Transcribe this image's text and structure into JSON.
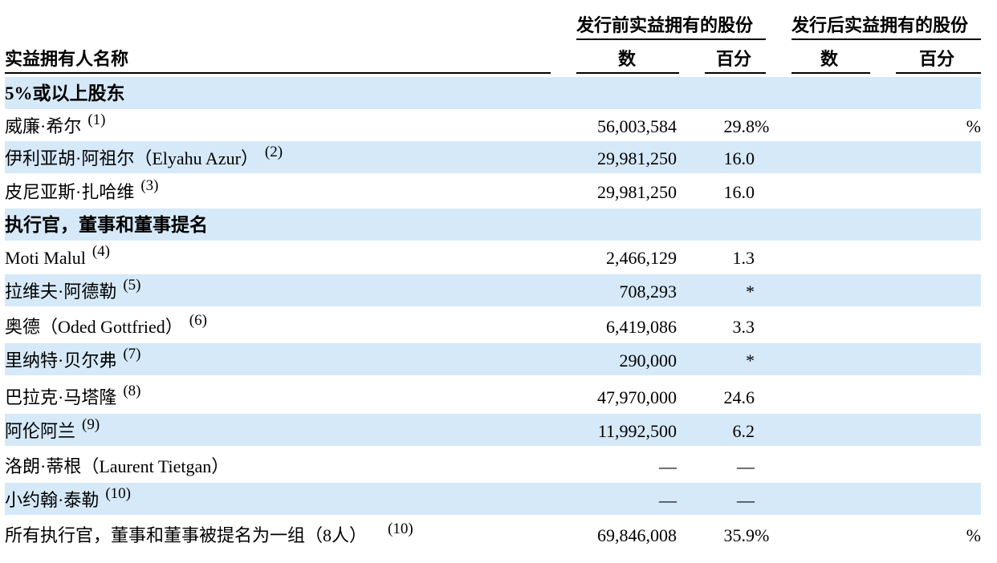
{
  "header": {
    "pre_group": "发行前实益拥有的股份",
    "post_group": "发行后实益拥有的股份",
    "name_col": "实益拥有人名称",
    "shares_col": "数",
    "percent_col": "百分",
    "post_shares_col": "数",
    "post_percent_col": "百分"
  },
  "rows": [
    {
      "name": "5%或以上股东",
      "section": true
    },
    {
      "name": "威廉·希尔",
      "fn": "(1)",
      "shares": "56,003,584",
      "pct": "29.8",
      "pct_sign": "%",
      "post_pct_sign": "%"
    },
    {
      "name": "伊利亚胡·阿祖尔（Elyahu Azur）",
      "fn": "(2)",
      "shares": "29,981,250",
      "pct": "16.0"
    },
    {
      "name": "皮尼亚斯·扎哈维",
      "fn": "(3)",
      "shares": "29,981,250",
      "pct": "16.0"
    },
    {
      "name": "执行官，董事和董事提名",
      "section": true
    },
    {
      "name": "Moti Malul",
      "fn": "(4)",
      "shares": "2,466,129",
      "pct": "1.3"
    },
    {
      "name": "拉维夫·阿德勒",
      "fn": "(5)",
      "shares": "708,293",
      "pct": "*"
    },
    {
      "name": "奥德（Oded Gottfried）",
      "fn": "(6)",
      "shares": "6,419,086",
      "pct": "3.3"
    },
    {
      "name": "里纳特·贝尔弗",
      "fn": "(7)",
      "shares": "290,000",
      "pct": "*"
    },
    {
      "name": "巴拉克·马塔隆",
      "fn": "(8)",
      "shares": "47,970,000",
      "pct": "24.6"
    },
    {
      "name": "阿伦阿兰",
      "fn": "(9)",
      "shares": "11,992,500",
      "pct": "6.2"
    },
    {
      "name": "洛朗·蒂根（Laurent Tietgan）",
      "shares": "—",
      "pct": "—"
    },
    {
      "name": "小约翰·泰勒",
      "fn": "(10)",
      "shares": "—",
      "pct": "—"
    },
    {
      "name": "所有执行官，董事和董事被提名为一组（8人）",
      "fn": "(10)",
      "shares": "69,846,008",
      "pct": "35.9",
      "pct_sign": "%",
      "post_pct_sign": "%"
    }
  ]
}
